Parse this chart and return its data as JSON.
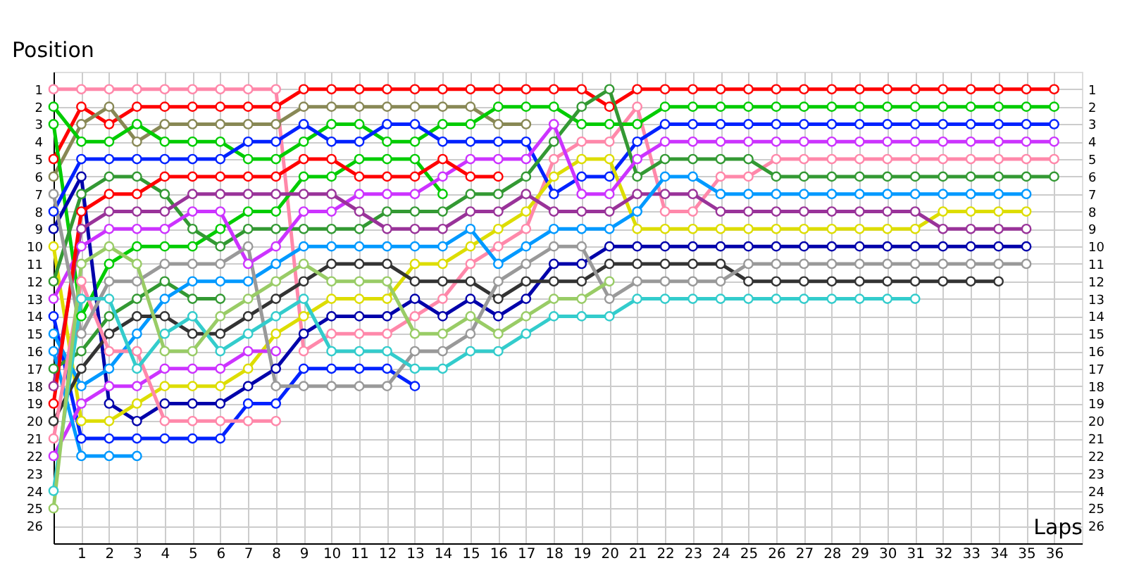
{
  "chart_data": {
    "type": "line",
    "xlabel": "Laps",
    "ylabel": "Position",
    "x": [
      0,
      1,
      2,
      3,
      4,
      5,
      6,
      7,
      8,
      9,
      10,
      11,
      12,
      13,
      14,
      15,
      16,
      17,
      18,
      19,
      20,
      21,
      22,
      23,
      24,
      25,
      26,
      27,
      28,
      29,
      30,
      31,
      32,
      33,
      34,
      35,
      36
    ],
    "xlim": [
      0,
      37
    ],
    "xticks": [
      1,
      2,
      3,
      4,
      5,
      6,
      7,
      8,
      9,
      10,
      11,
      12,
      13,
      14,
      15,
      16,
      17,
      18,
      19,
      20,
      21,
      22,
      23,
      24,
      25,
      26,
      27,
      28,
      29,
      30,
      31,
      32,
      33,
      34,
      35,
      36
    ],
    "ylim": [
      27,
      0
    ],
    "yticks": [
      1,
      2,
      3,
      4,
      5,
      6,
      7,
      8,
      9,
      10,
      11,
      12,
      13,
      14,
      15,
      16,
      17,
      18,
      19,
      20,
      21,
      22,
      23,
      24,
      25,
      26
    ],
    "y2lim": [
      27,
      0
    ],
    "y2ticks": [
      1,
      2,
      3,
      4,
      5,
      6,
      7,
      8,
      9,
      10,
      11,
      12,
      13,
      14,
      15,
      16,
      17,
      18,
      19,
      20,
      21,
      22,
      23,
      24,
      25,
      26
    ],
    "grid": true,
    "legend": false,
    "marker": "circle",
    "line_style": "solid",
    "series": [
      {
        "color": "#ff88aa",
        "values": [
          1,
          1,
          1,
          1,
          1,
          1,
          1,
          1,
          1,
          16,
          15,
          15,
          15,
          14,
          13,
          11,
          10,
          9,
          5,
          4,
          4,
          2,
          8,
          8,
          6,
          6,
          5,
          5,
          5,
          5,
          5,
          5,
          5,
          5,
          5,
          5,
          5
        ]
      },
      {
        "color": "#ff0000",
        "values": [
          5,
          2,
          3,
          2,
          2,
          2,
          2,
          2,
          2,
          1,
          1,
          1,
          1,
          1,
          1,
          1,
          1,
          1,
          1,
          1,
          2,
          1,
          1,
          1,
          1,
          1,
          1,
          1,
          1,
          1,
          1,
          1,
          1,
          1,
          1,
          1,
          1
        ]
      },
      {
        "color": "#888855",
        "values": [
          6,
          3,
          2,
          4,
          3,
          3,
          3,
          3,
          3,
          2,
          2,
          2,
          2,
          2,
          2,
          2,
          3,
          3,
          null,
          null,
          null,
          null,
          null,
          null,
          null,
          null,
          null,
          null,
          null,
          null,
          null,
          null,
          null,
          null,
          null,
          null,
          null
        ]
      },
      {
        "color": "#00cc00",
        "values": [
          2,
          4,
          4,
          3,
          4,
          4,
          4,
          5,
          5,
          4,
          3,
          3,
          4,
          4,
          3,
          3,
          2,
          2,
          2,
          3,
          3,
          3,
          2,
          2,
          2,
          2,
          2,
          2,
          2,
          2,
          2,
          2,
          2,
          2,
          2,
          2,
          2
        ]
      },
      {
        "color": "#00cc00",
        "values": [
          3,
          14,
          11,
          10,
          10,
          10,
          9,
          8,
          8,
          6,
          6,
          5,
          5,
          5,
          7,
          null,
          null,
          null,
          null,
          null,
          null,
          null,
          null,
          null,
          null,
          null,
          null,
          null,
          null,
          null,
          null,
          null,
          null,
          null,
          null,
          null,
          null
        ]
      },
      {
        "color": "#0022ff",
        "values": [
          8,
          5,
          5,
          5,
          5,
          5,
          5,
          4,
          4,
          3,
          4,
          4,
          3,
          3,
          4,
          4,
          4,
          4,
          7,
          6,
          6,
          4,
          3,
          3,
          3,
          3,
          3,
          3,
          3,
          3,
          3,
          3,
          3,
          3,
          3,
          3,
          3
        ]
      },
      {
        "color": "#0022ff",
        "values": [
          14,
          21,
          21,
          21,
          21,
          21,
          21,
          19,
          19,
          17,
          17,
          17,
          17,
          18,
          null,
          null,
          null,
          null,
          null,
          null,
          null,
          null,
          null,
          null,
          null,
          null,
          null,
          null,
          null,
          null,
          null,
          null,
          null,
          null,
          null,
          null,
          null
        ]
      },
      {
        "color": "#0000aa",
        "values": [
          9,
          6,
          19,
          20,
          19,
          19,
          19,
          18,
          17,
          15,
          14,
          14,
          14,
          13,
          14,
          13,
          14,
          13,
          11,
          11,
          10,
          10,
          10,
          10,
          10,
          10,
          10,
          10,
          10,
          10,
          10,
          10,
          10,
          10,
          10,
          10,
          null
        ]
      },
      {
        "color": "#dddd00",
        "values": [
          10,
          20,
          20,
          19,
          18,
          18,
          18,
          17,
          15,
          14,
          13,
          13,
          13,
          11,
          11,
          10,
          9,
          8,
          6,
          5,
          5,
          9,
          9,
          9,
          9,
          9,
          9,
          9,
          9,
          9,
          9,
          9,
          8,
          8,
          8,
          8,
          null
        ]
      },
      {
        "color": "#339933",
        "values": [
          12,
          7,
          6,
          6,
          7,
          9,
          10,
          9,
          9,
          9,
          9,
          9,
          8,
          8,
          8,
          7,
          7,
          6,
          4,
          2,
          1,
          6,
          5,
          5,
          5,
          5,
          6,
          6,
          6,
          6,
          6,
          6,
          6,
          6,
          6,
          6,
          6
        ]
      },
      {
        "color": "#339933",
        "values": [
          17,
          16,
          14,
          13,
          12,
          13,
          13,
          null,
          null,
          null,
          null,
          null,
          null,
          null,
          null,
          null,
          null,
          null,
          null,
          null,
          null,
          null,
          null,
          null,
          null,
          null,
          null,
          null,
          null,
          null,
          null,
          null,
          null,
          null,
          null,
          null,
          null
        ]
      },
      {
        "color": "#cc33ff",
        "values": [
          13,
          10,
          9,
          9,
          9,
          8,
          8,
          11,
          10,
          8,
          8,
          7,
          7,
          7,
          6,
          5,
          5,
          5,
          3,
          7,
          7,
          5,
          4,
          4,
          4,
          4,
          4,
          4,
          4,
          4,
          4,
          4,
          4,
          4,
          4,
          4,
          4
        ]
      },
      {
        "color": "#cc33ff",
        "values": [
          22,
          19,
          18,
          18,
          17,
          17,
          17,
          16,
          16,
          null,
          null,
          null,
          null,
          null,
          null,
          null,
          null,
          null,
          null,
          null,
          null,
          null,
          null,
          null,
          null,
          null,
          null,
          null,
          null,
          null,
          null,
          null,
          null,
          null,
          null,
          null,
          null
        ]
      },
      {
        "color": "#993399",
        "values": [
          18,
          9,
          8,
          8,
          8,
          7,
          7,
          7,
          7,
          7,
          7,
          8,
          9,
          9,
          9,
          8,
          8,
          7,
          8,
          8,
          8,
          7,
          7,
          7,
          8,
          8,
          8,
          8,
          8,
          8,
          8,
          8,
          9,
          9,
          9,
          9,
          null
        ]
      },
      {
        "color": "#0099ff",
        "values": [
          15,
          18,
          17,
          15,
          13,
          12,
          12,
          12,
          11,
          10,
          10,
          10,
          10,
          10,
          10,
          9,
          11,
          10,
          9,
          9,
          9,
          8,
          6,
          6,
          7,
          7,
          7,
          7,
          7,
          7,
          7,
          7,
          7,
          7,
          7,
          7,
          null
        ]
      },
      {
        "color": "#0099ff",
        "values": [
          16,
          22,
          22,
          22,
          null,
          null,
          null,
          null,
          null,
          null,
          null,
          null,
          null,
          null,
          null,
          null,
          null,
          null,
          null,
          null,
          null,
          null,
          null,
          null,
          null,
          null,
          null,
          null,
          null,
          null,
          null,
          null,
          null,
          null,
          null,
          null,
          null
        ]
      },
      {
        "color": "#ff0000",
        "values": [
          19,
          8,
          7,
          7,
          6,
          6,
          6,
          6,
          6,
          5,
          5,
          6,
          6,
          6,
          5,
          6,
          6,
          null,
          null,
          null,
          null,
          null,
          null,
          null,
          null,
          null,
          null,
          null,
          null,
          null,
          null,
          null,
          null,
          null,
          null,
          null,
          null
        ]
      },
      {
        "color": "#333333",
        "values": [
          20,
          17,
          15,
          14,
          14,
          15,
          15,
          14,
          13,
          12,
          11,
          11,
          11,
          12,
          12,
          12,
          13,
          12,
          12,
          12,
          11,
          11,
          11,
          11,
          11,
          12,
          12,
          12,
          12,
          12,
          12,
          12,
          12,
          12,
          12,
          null,
          null
        ]
      },
      {
        "color": "#ff88aa",
        "values": [
          21,
          12,
          16,
          16,
          20,
          20,
          20,
          20,
          20,
          null,
          null,
          null,
          null,
          null,
          null,
          null,
          null,
          null,
          null,
          null,
          null,
          null,
          null,
          null,
          null,
          null,
          null,
          null,
          null,
          null,
          null,
          null,
          null,
          null,
          null,
          null,
          null
        ]
      },
      {
        "color": "#999999",
        "values": [
          7,
          15,
          12,
          12,
          11,
          11,
          11,
          10,
          18,
          18,
          18,
          18,
          18,
          16,
          16,
          15,
          12,
          11,
          10,
          10,
          13,
          12,
          12,
          12,
          12,
          11,
          11,
          11,
          11,
          11,
          11,
          11,
          11,
          11,
          11,
          11,
          null
        ]
      },
      {
        "color": "#33cccc",
        "values": [
          24,
          13,
          13,
          17,
          15,
          14,
          16,
          15,
          14,
          13,
          16,
          16,
          16,
          17,
          17,
          16,
          16,
          15,
          14,
          14,
          14,
          13,
          13,
          13,
          13,
          13,
          13,
          13,
          13,
          13,
          13,
          13,
          null,
          null,
          null,
          null,
          null
        ]
      },
      {
        "color": "#99cc66",
        "values": [
          25,
          11,
          10,
          11,
          16,
          16,
          14,
          13,
          12,
          11,
          12,
          12,
          12,
          15,
          15,
          14,
          15,
          14,
          13,
          13,
          12,
          null,
          null,
          null,
          null,
          null,
          null,
          null,
          null,
          null,
          null,
          null,
          null,
          null,
          null,
          null,
          null
        ]
      }
    ]
  }
}
